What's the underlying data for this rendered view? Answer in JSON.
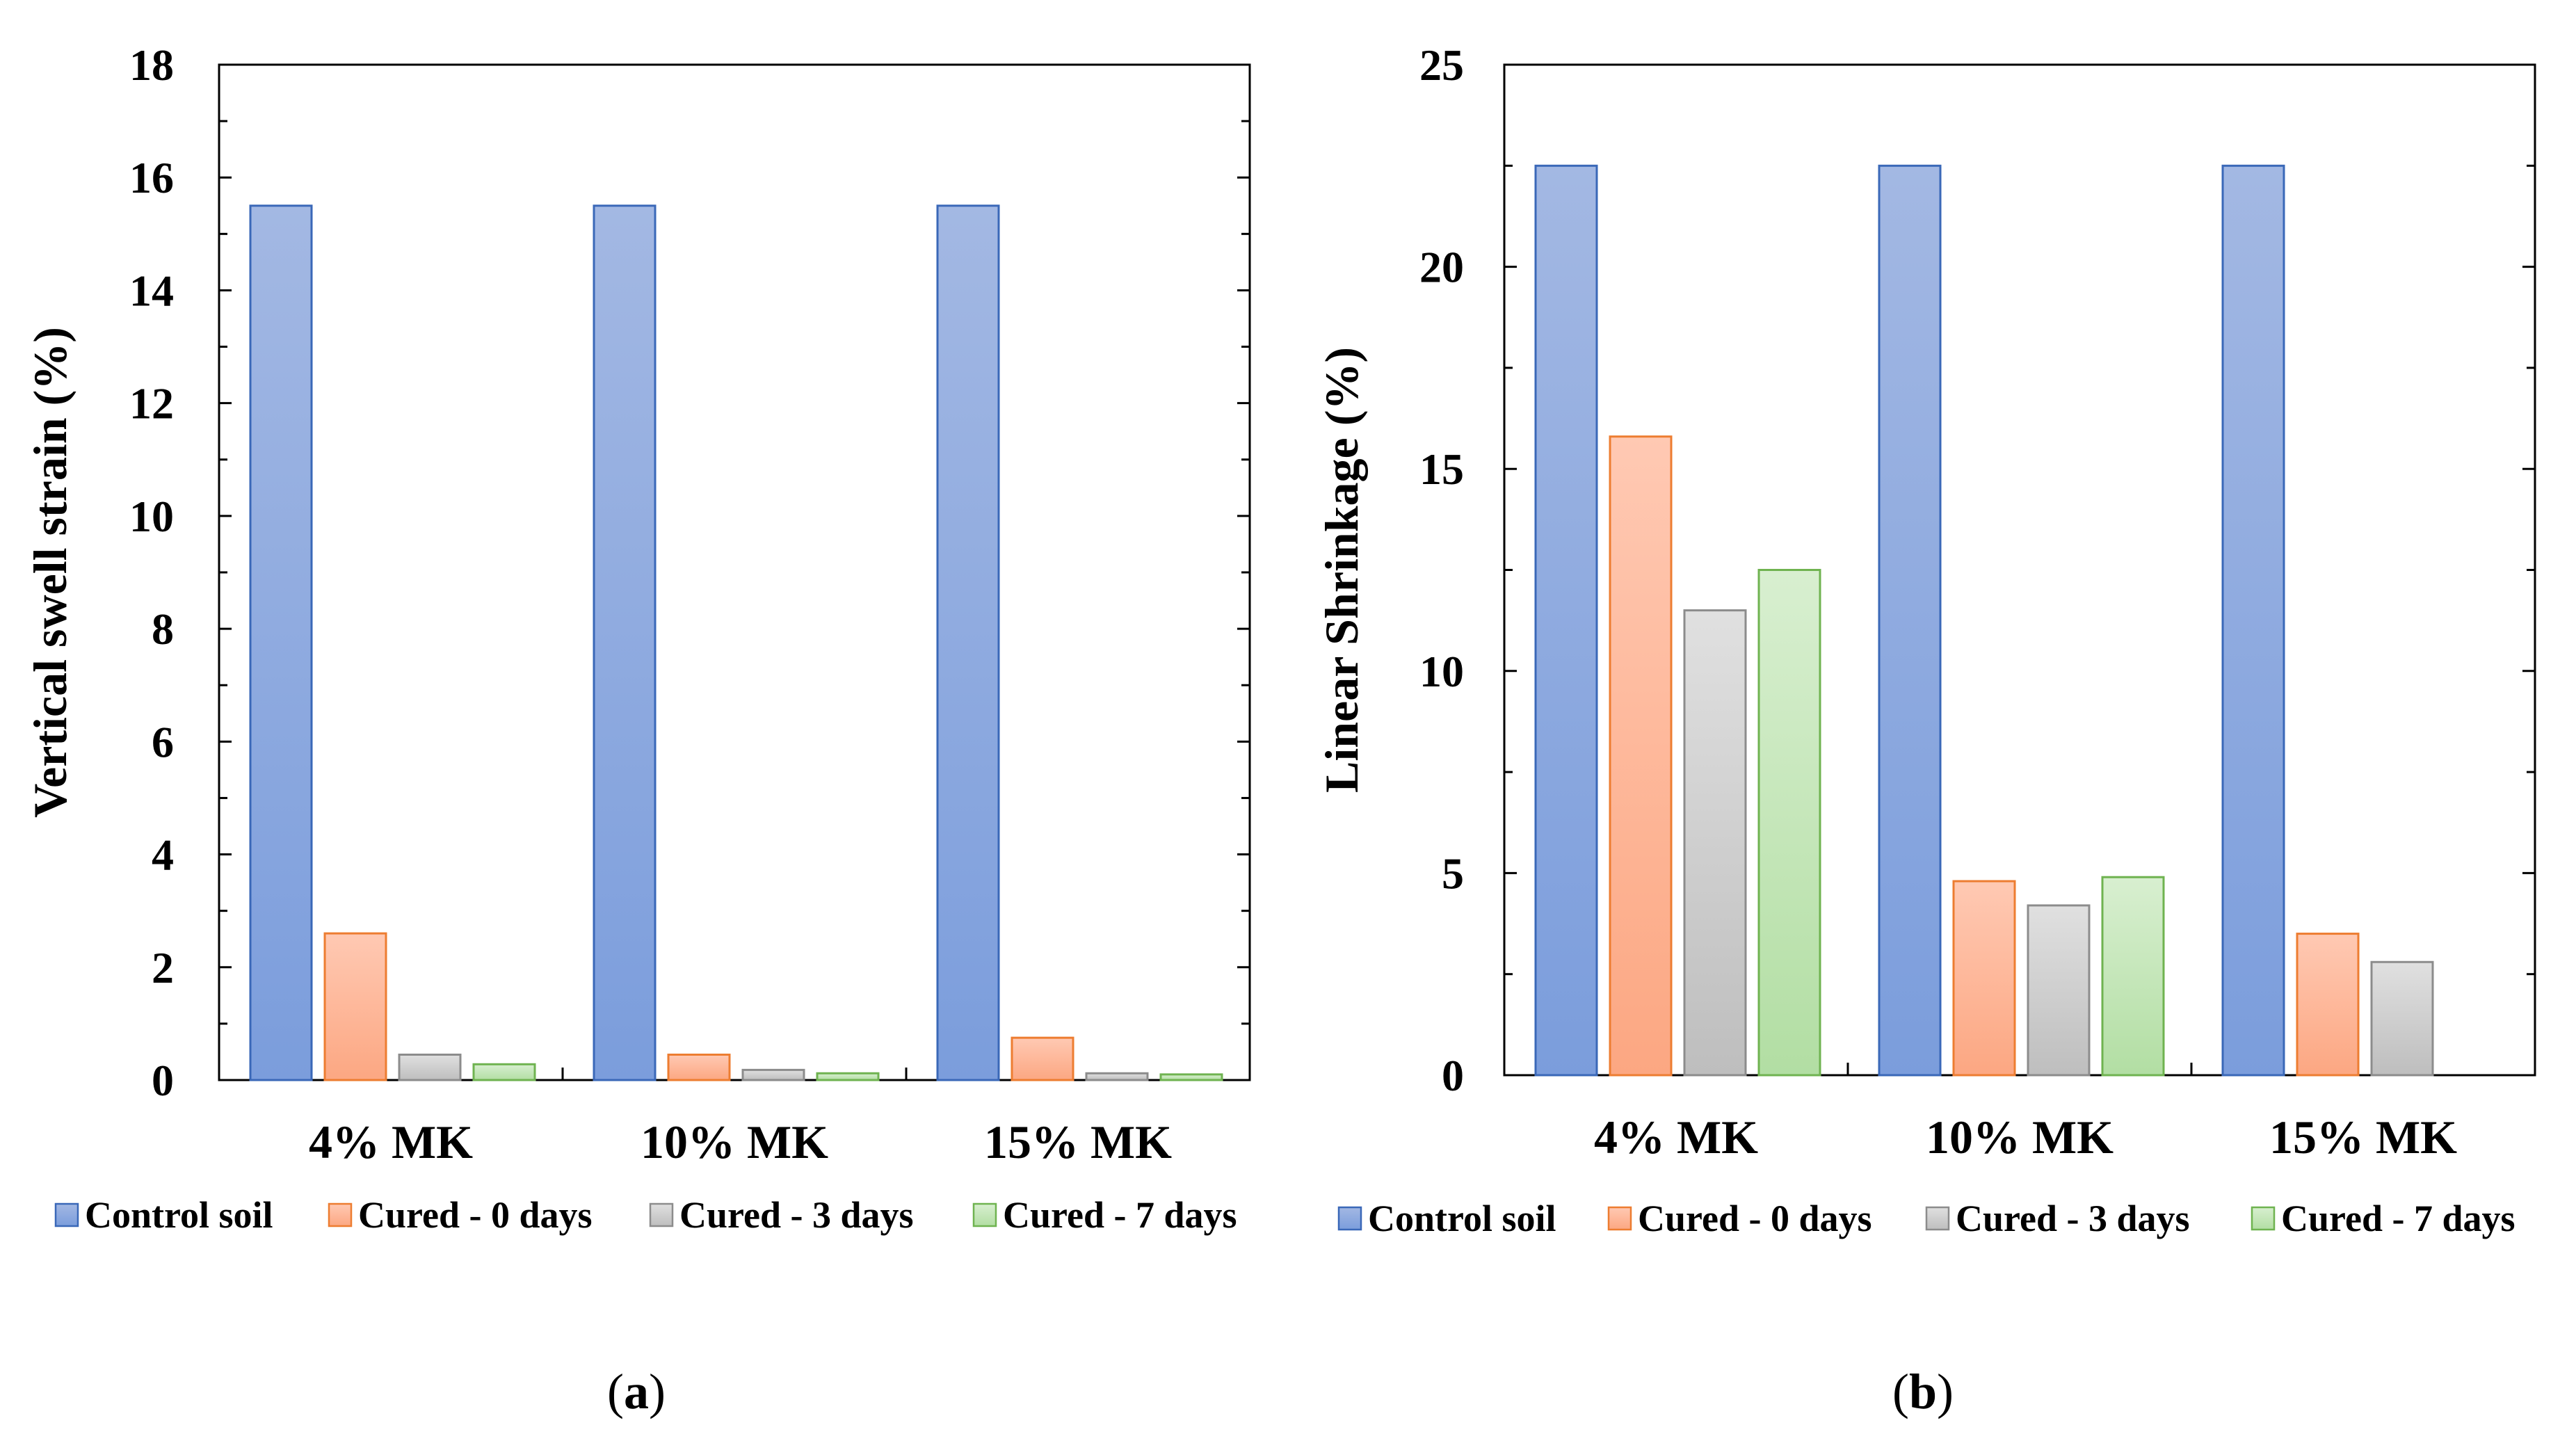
{
  "series_styles": [
    {
      "top": "#a3b8e3",
      "bottom": "#7b9ddc",
      "stroke": "#3a68b8"
    },
    {
      "top": "#ffc9b3",
      "bottom": "#fca782",
      "stroke": "#ed7d31"
    },
    {
      "top": "#e0e0e0",
      "bottom": "#bebebe",
      "stroke": "#8c8c8c"
    },
    {
      "top": "#d8efd0",
      "bottom": "#b2dea3",
      "stroke": "#6fb350"
    }
  ],
  "chart_data": [
    {
      "type": "bar",
      "panel_label": "a",
      "categories": [
        "4% MK",
        "10% MK",
        "15% MK"
      ],
      "series": [
        {
          "name": "Control soil",
          "values": [
            15.5,
            15.5,
            15.5
          ]
        },
        {
          "name": "Cured - 0 days",
          "values": [
            2.6,
            0.45,
            0.75
          ]
        },
        {
          "name": "Cured - 3 days",
          "values": [
            0.45,
            0.18,
            0.12
          ]
        },
        {
          "name": "Cured - 7 days",
          "values": [
            0.28,
            0.12,
            0.1
          ]
        }
      ],
      "title": "",
      "xlabel": "",
      "ylabel": "Vertical swell strain (%)",
      "ylim": [
        0,
        18
      ],
      "yticks": [
        0,
        2,
        4,
        6,
        8,
        10,
        12,
        14,
        16,
        18
      ],
      "grid": false,
      "legend_position": "bottom"
    },
    {
      "type": "bar",
      "panel_label": "b",
      "categories": [
        "4% MK",
        "10% MK",
        "15% MK"
      ],
      "series": [
        {
          "name": "Control soil",
          "values": [
            22.5,
            22.5,
            22.5
          ]
        },
        {
          "name": "Cured - 0 days",
          "values": [
            15.8,
            4.8,
            3.5
          ]
        },
        {
          "name": "Cured - 3 days",
          "values": [
            11.5,
            4.2,
            2.8
          ]
        },
        {
          "name": "Cured - 7 days",
          "values": [
            12.5,
            4.9,
            0
          ]
        }
      ],
      "title": "",
      "xlabel": "",
      "ylabel": "Linear Shrinkage (%)",
      "ylim": [
        0,
        25
      ],
      "yticks": [
        0,
        5,
        10,
        15,
        20,
        25
      ],
      "grid": false,
      "legend_position": "bottom"
    }
  ]
}
